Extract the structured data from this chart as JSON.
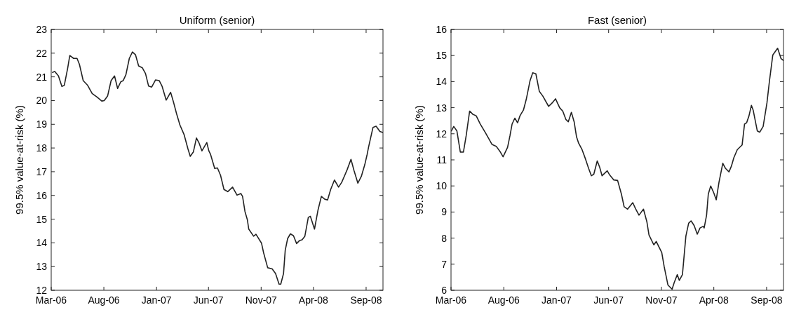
{
  "chart_data": [
    {
      "type": "line",
      "title": "Uniform (senior)",
      "ylabel": "99.5% value-at-risk (%)",
      "xlim": [
        "2006-03-01",
        "2008-10-20"
      ],
      "xticks": [
        {
          "value": "2006-03-01",
          "label": "Mar-06"
        },
        {
          "value": "2006-08-01",
          "label": "Aug-06"
        },
        {
          "value": "2007-01-01",
          "label": "Jan-07"
        },
        {
          "value": "2007-06-01",
          "label": "Jun-07"
        },
        {
          "value": "2007-11-01",
          "label": "Nov-07"
        },
        {
          "value": "2008-04-01",
          "label": "Apr-08"
        },
        {
          "value": "2008-09-01",
          "label": "Sep-08"
        }
      ],
      "ylim": [
        12,
        23
      ],
      "yticks": [
        12,
        13,
        14,
        15,
        16,
        17,
        18,
        19,
        20,
        21,
        22,
        23
      ],
      "grid": false,
      "series": [
        {
          "color": "#222222",
          "x": [
            "2006-03-05",
            "2006-03-11",
            "2006-03-22",
            "2006-04-01",
            "2006-04-08",
            "2006-04-18",
            "2006-04-24",
            "2006-05-05",
            "2006-05-15",
            "2006-05-22",
            "2006-06-02",
            "2006-06-15",
            "2006-06-28",
            "2006-07-12",
            "2006-07-26",
            "2006-08-02",
            "2006-08-12",
            "2006-08-22",
            "2006-09-01",
            "2006-09-10",
            "2006-09-19",
            "2006-09-26",
            "2006-10-04",
            "2006-10-14",
            "2006-10-23",
            "2006-11-01",
            "2006-11-10",
            "2006-11-21",
            "2006-11-30",
            "2006-12-09",
            "2006-12-18",
            "2006-12-29",
            "2007-01-09",
            "2007-01-17",
            "2007-01-29",
            "2007-02-11",
            "2007-02-20",
            "2007-02-28",
            "2007-03-10",
            "2007-03-22",
            "2007-04-02",
            "2007-04-09",
            "2007-04-18",
            "2007-04-27",
            "2007-05-04",
            "2007-05-13",
            "2007-05-27",
            "2007-06-02",
            "2007-06-07",
            "2007-06-19",
            "2007-06-27",
            "2007-07-06",
            "2007-07-16",
            "2007-07-27",
            "2007-08-10",
            "2007-08-23",
            "2007-09-03",
            "2007-09-08",
            "2007-09-15",
            "2007-09-22",
            "2007-09-26",
            "2007-10-10",
            "2007-10-17",
            "2007-11-02",
            "2007-11-08",
            "2007-11-20",
            "2007-12-03",
            "2007-12-13",
            "2007-12-23",
            "2007-12-28",
            "2008-01-05",
            "2008-01-10",
            "2008-01-17",
            "2008-01-25",
            "2008-02-03",
            "2008-02-12",
            "2008-02-20",
            "2008-02-28",
            "2008-03-07",
            "2008-03-17",
            "2008-03-23",
            "2008-04-04",
            "2008-04-14",
            "2008-04-24",
            "2008-05-04",
            "2008-05-12",
            "2008-05-21",
            "2008-06-01",
            "2008-06-13",
            "2008-06-22",
            "2008-07-01",
            "2008-07-08",
            "2008-07-19",
            "2008-07-28",
            "2008-08-08",
            "2008-08-18",
            "2008-08-28",
            "2008-09-04",
            "2008-09-08",
            "2008-09-21",
            "2008-09-30",
            "2008-10-11",
            "2008-10-20"
          ],
          "values": [
            21.19,
            21.23,
            21.04,
            20.6,
            20.64,
            21.38,
            21.9,
            21.78,
            21.78,
            21.53,
            20.84,
            20.64,
            20.3,
            20.15,
            19.98,
            20.0,
            20.2,
            20.84,
            21.04,
            20.51,
            20.79,
            20.84,
            21.09,
            21.78,
            22.05,
            21.93,
            21.46,
            21.38,
            21.14,
            20.61,
            20.57,
            20.87,
            20.84,
            20.61,
            20.02,
            20.35,
            19.9,
            19.46,
            18.97,
            18.57,
            17.98,
            17.65,
            17.83,
            18.42,
            18.23,
            17.88,
            18.23,
            17.88,
            17.73,
            17.14,
            17.16,
            16.85,
            16.25,
            16.16,
            16.35,
            16.01,
            16.08,
            15.96,
            15.32,
            14.97,
            14.58,
            14.28,
            14.36,
            13.99,
            13.59,
            12.95,
            12.9,
            12.7,
            12.26,
            12.26,
            12.7,
            13.69,
            14.18,
            14.38,
            14.3,
            13.97,
            14.09,
            14.13,
            14.28,
            15.07,
            15.12,
            14.58,
            15.37,
            15.96,
            15.84,
            15.81,
            16.25,
            16.65,
            16.35,
            16.55,
            16.85,
            17.09,
            17.52,
            17.04,
            16.52,
            16.8,
            17.29,
            17.73,
            18.03,
            18.87,
            18.92,
            18.7,
            18.65
          ]
        }
      ]
    },
    {
      "type": "line",
      "title": "Fast (senior)",
      "ylabel": "99.5% value-at-risk (%)",
      "xlim": [
        "2006-03-01",
        "2008-10-20"
      ],
      "xticks": [
        {
          "value": "2006-03-01",
          "label": "Mar-06"
        },
        {
          "value": "2006-08-01",
          "label": "Aug-06"
        },
        {
          "value": "2007-01-01",
          "label": "Jan-07"
        },
        {
          "value": "2007-06-01",
          "label": "Jun-07"
        },
        {
          "value": "2007-11-01",
          "label": "Nov-07"
        },
        {
          "value": "2008-04-01",
          "label": "Apr-08"
        },
        {
          "value": "2008-09-01",
          "label": "Sep-08"
        }
      ],
      "ylim": [
        6,
        16
      ],
      "yticks": [
        6,
        7,
        8,
        9,
        10,
        11,
        12,
        13,
        14,
        15,
        16
      ],
      "grid": false,
      "series": [
        {
          "color": "#222222",
          "x": [
            "2006-03-02",
            "2006-03-09",
            "2006-03-18",
            "2006-03-28",
            "2006-04-06",
            "2006-04-14",
            "2006-04-24",
            "2006-05-03",
            "2006-05-13",
            "2006-05-25",
            "2006-06-08",
            "2006-06-28",
            "2006-07-10",
            "2006-07-22",
            "2006-07-30",
            "2006-08-12",
            "2006-08-19",
            "2006-08-25",
            "2006-09-02",
            "2006-09-10",
            "2006-09-17",
            "2006-09-27",
            "2006-10-05",
            "2006-10-16",
            "2006-10-24",
            "2006-11-02",
            "2006-11-12",
            "2006-11-22",
            "2006-12-09",
            "2006-12-19",
            "2006-12-29",
            "2007-01-10",
            "2007-01-19",
            "2007-01-28",
            "2007-02-04",
            "2007-02-13",
            "2007-02-21",
            "2007-02-28",
            "2007-03-06",
            "2007-03-16",
            "2007-03-26",
            "2007-04-04",
            "2007-04-12",
            "2007-04-19",
            "2007-04-29",
            "2007-05-06",
            "2007-05-13",
            "2007-05-28",
            "2007-06-04",
            "2007-06-16",
            "2007-06-27",
            "2007-07-08",
            "2007-07-16",
            "2007-07-26",
            "2007-08-10",
            "2007-08-18",
            "2007-08-28",
            "2007-09-10",
            "2007-09-20",
            "2007-09-26",
            "2007-10-10",
            "2007-10-17",
            "2007-11-02",
            "2007-11-09",
            "2007-11-20",
            "2007-12-02",
            "2007-12-08",
            "2007-12-17",
            "2007-12-23",
            "2008-01-01",
            "2008-01-11",
            "2008-01-19",
            "2008-01-26",
            "2008-02-04",
            "2008-02-13",
            "2008-02-21",
            "2008-03-01",
            "2008-03-04",
            "2008-03-11",
            "2008-03-16",
            "2008-03-23",
            "2008-04-01",
            "2008-04-08",
            "2008-04-16",
            "2008-04-27",
            "2008-05-05",
            "2008-05-15",
            "2008-05-22",
            "2008-05-29",
            "2008-06-08",
            "2008-06-22",
            "2008-06-29",
            "2008-07-05",
            "2008-07-12",
            "2008-07-19",
            "2008-07-24",
            "2008-08-05",
            "2008-08-12",
            "2008-08-22",
            "2008-09-02",
            "2008-09-09",
            "2008-09-19",
            "2008-10-03",
            "2008-10-13",
            "2008-10-20"
          ],
          "values": [
            12.11,
            12.28,
            12.11,
            11.3,
            11.3,
            11.93,
            12.87,
            12.75,
            12.69,
            12.37,
            12.06,
            11.59,
            11.52,
            11.3,
            11.12,
            11.48,
            11.93,
            12.37,
            12.6,
            12.42,
            12.69,
            12.91,
            13.31,
            14.03,
            14.34,
            14.3,
            13.63,
            13.45,
            13.05,
            13.18,
            13.34,
            13.0,
            12.87,
            12.55,
            12.46,
            12.82,
            12.46,
            11.88,
            11.64,
            11.39,
            11.03,
            10.67,
            10.39,
            10.45,
            10.96,
            10.72,
            10.39,
            10.58,
            10.42,
            10.23,
            10.21,
            9.69,
            9.2,
            9.11,
            9.36,
            9.13,
            8.88,
            9.11,
            8.62,
            8.12,
            7.74,
            7.87,
            7.45,
            6.91,
            6.2,
            6.04,
            6.29,
            6.6,
            6.38,
            6.6,
            8.08,
            8.57,
            8.66,
            8.48,
            8.15,
            8.39,
            8.45,
            8.39,
            8.88,
            9.69,
            10.0,
            9.73,
            9.47,
            10.14,
            10.87,
            10.67,
            10.54,
            10.76,
            11.08,
            11.39,
            11.57,
            12.37,
            12.42,
            12.69,
            13.09,
            12.91,
            12.11,
            12.06,
            12.28,
            13.18,
            13.99,
            15.02,
            15.28,
            14.88,
            14.81
          ]
        }
      ]
    }
  ]
}
